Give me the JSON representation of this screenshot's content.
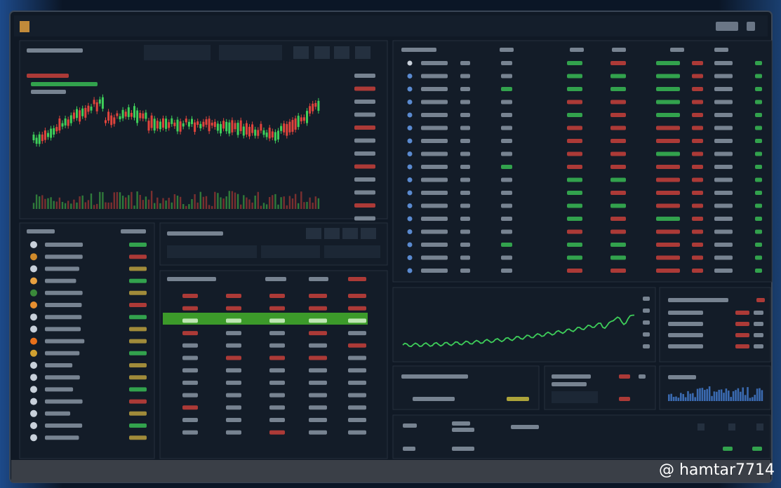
{
  "watermark": {
    "text": "@ hamtar7714"
  }
}
